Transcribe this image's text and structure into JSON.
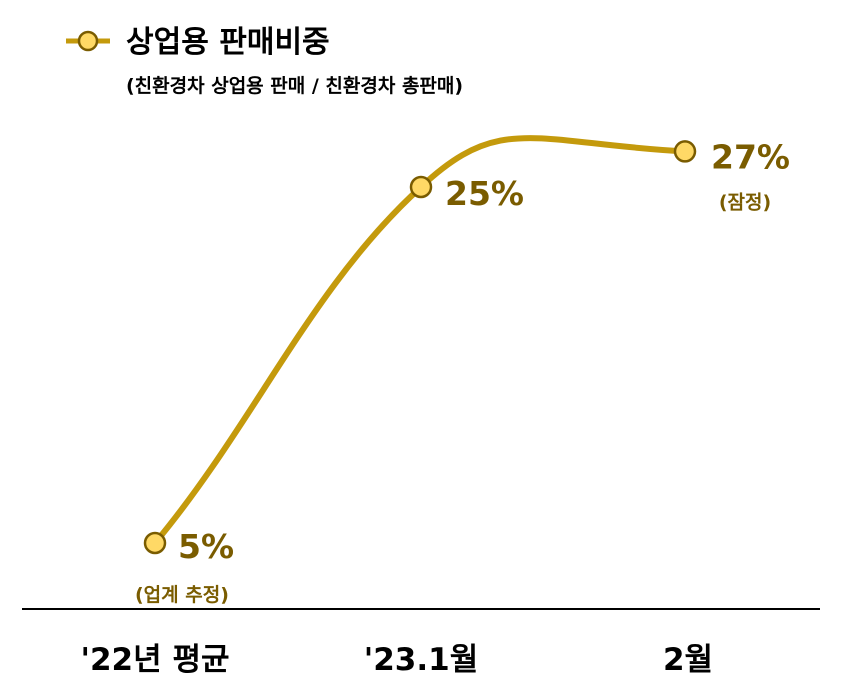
{
  "chart_data": {
    "type": "line",
    "title": "상업용 판매비중",
    "subtitle": "(친환경차 상업용 판매 / 친환경차 총판매)",
    "categories": [
      "'22년 평균",
      "'23.1월",
      "2월"
    ],
    "values": [
      5,
      25,
      27
    ],
    "value_labels": [
      "5%",
      "25%",
      "27%"
    ],
    "notes": [
      "(업계 추정)",
      "",
      "(잠정)"
    ],
    "ylim": [
      0,
      30
    ],
    "grid": false,
    "legend": "top-left"
  },
  "colors": {
    "line": "#c49a0c",
    "marker_fill": "#ffd966",
    "marker_stroke": "#7a5c00",
    "label": "#7a5c00",
    "axis": "#000000"
  }
}
